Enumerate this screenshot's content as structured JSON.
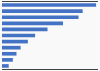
{
  "chart_data": {
    "type": "bar",
    "orientation": "horizontal",
    "categories": [
      null,
      null,
      null,
      null,
      null,
      null,
      null,
      null,
      null,
      null,
      null
    ],
    "values": [
      910,
      780,
      740,
      590,
      440,
      320,
      250,
      180,
      140,
      105,
      65
    ],
    "color": "#4472c4",
    "xlim": [
      0,
      928.2
    ],
    "grid": false,
    "tick_labels": false
  }
}
